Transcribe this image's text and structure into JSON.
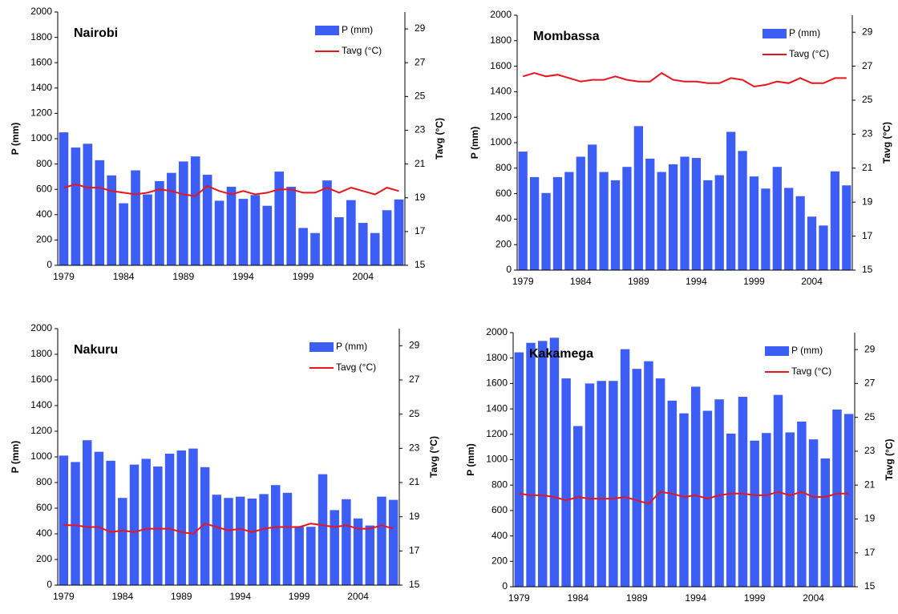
{
  "chart_data": [
    {
      "type": "combo",
      "title": "Nairobi",
      "ylabel": "P (mm)",
      "y2label": "Tavg (°C)",
      "categories": [
        "1979",
        null,
        null,
        null,
        null,
        "1984",
        null,
        null,
        null,
        null,
        "1989",
        null,
        null,
        null,
        null,
        "1994",
        null,
        null,
        null,
        null,
        "1999",
        null,
        null,
        null,
        null,
        "2004",
        null,
        null,
        null
      ],
      "ylim": [
        0,
        2000
      ],
      "yticks": [
        0,
        200,
        400,
        600,
        800,
        1000,
        1200,
        1400,
        1600,
        1800,
        2000
      ],
      "y2lim": [
        15,
        30
      ],
      "y2ticks": [
        15,
        17,
        19,
        21,
        23,
        25,
        27,
        29
      ],
      "series": [
        {
          "name": "P (mm)",
          "type": "bar",
          "color": "#3d5ef5",
          "values": [
            1050,
            930,
            960,
            830,
            710,
            490,
            750,
            560,
            665,
            730,
            820,
            860,
            715,
            510,
            620,
            525,
            555,
            470,
            740,
            620,
            295,
            255,
            670,
            380,
            515,
            335,
            255,
            435,
            520
          ]
        },
        {
          "name": "Tavg (°C)",
          "type": "line",
          "axis": "y2",
          "color": "#e8161c",
          "values": [
            19.6,
            19.8,
            19.6,
            19.6,
            19.4,
            19.3,
            19.2,
            19.3,
            19.5,
            19.4,
            19.2,
            19.1,
            19.7,
            19.4,
            19.2,
            19.4,
            19.2,
            19.3,
            19.5,
            19.5,
            19.3,
            19.3,
            19.6,
            19.3,
            19.6,
            19.4,
            19.2,
            19.6,
            19.4
          ]
        }
      ]
    },
    {
      "type": "combo",
      "title": "Mombassa",
      "ylabel": "P (mm)",
      "y2label": "Tavg (°C)",
      "categories": [
        "1979",
        null,
        null,
        null,
        null,
        "1984",
        null,
        null,
        null,
        null,
        "1989",
        null,
        null,
        null,
        null,
        "1994",
        null,
        null,
        null,
        null,
        "1999",
        null,
        null,
        null,
        null,
        "2004",
        null,
        null,
        null
      ],
      "ylim": [
        0,
        2000
      ],
      "yticks": [
        0,
        200,
        400,
        600,
        800,
        1000,
        1200,
        1400,
        1600,
        1800,
        2000
      ],
      "y2lim": [
        15,
        30
      ],
      "y2ticks": [
        15,
        17,
        19,
        21,
        23,
        25,
        27,
        29
      ],
      "series": [
        {
          "name": "P (mm)",
          "type": "bar",
          "color": "#3d5ef5",
          "values": [
            930,
            730,
            605,
            730,
            770,
            890,
            985,
            770,
            705,
            810,
            1130,
            875,
            770,
            830,
            890,
            880,
            705,
            745,
            1085,
            935,
            735,
            640,
            810,
            645,
            580,
            420,
            350,
            775,
            665
          ]
        },
        {
          "name": "Tavg (°C)",
          "type": "line",
          "axis": "y2",
          "color": "#e8161c",
          "values": [
            26.4,
            26.6,
            26.4,
            26.5,
            26.3,
            26.1,
            26.2,
            26.2,
            26.4,
            26.2,
            26.1,
            26.1,
            26.6,
            26.2,
            26.1,
            26.1,
            26.0,
            26.0,
            26.3,
            26.2,
            25.8,
            25.9,
            26.1,
            26.0,
            26.3,
            26.0,
            26.0,
            26.3,
            26.3
          ]
        }
      ]
    },
    {
      "type": "combo",
      "title": "Nakuru",
      "ylabel": "P (mm)",
      "y2label": "Tavg (°C)",
      "categories": [
        "1979",
        null,
        null,
        null,
        null,
        "1984",
        null,
        null,
        null,
        null,
        "1989",
        null,
        null,
        null,
        null,
        "1994",
        null,
        null,
        null,
        null,
        "1999",
        null,
        null,
        null,
        null,
        "2004",
        null,
        null,
        null
      ],
      "ylim": [
        0,
        2000
      ],
      "yticks": [
        0,
        200,
        400,
        600,
        800,
        1000,
        1200,
        1400,
        1600,
        1800,
        2000
      ],
      "y2lim": [
        15,
        30
      ],
      "y2ticks": [
        15,
        17,
        19,
        21,
        23,
        25,
        27,
        29
      ],
      "series": [
        {
          "name": "P (mm)",
          "type": "bar",
          "color": "#3d5ef5",
          "values": [
            1010,
            960,
            1130,
            1040,
            970,
            680,
            940,
            985,
            925,
            1025,
            1050,
            1065,
            920,
            705,
            680,
            690,
            675,
            710,
            780,
            720,
            460,
            455,
            865,
            585,
            670,
            520,
            465,
            690,
            665
          ]
        },
        {
          "name": "Tavg (°C)",
          "type": "line",
          "axis": "y2",
          "color": "#e8161c",
          "values": [
            18.5,
            18.5,
            18.4,
            18.4,
            18.1,
            18.2,
            18.1,
            18.3,
            18.3,
            18.3,
            18.1,
            18.0,
            18.6,
            18.4,
            18.2,
            18.3,
            18.1,
            18.3,
            18.4,
            18.4,
            18.4,
            18.6,
            18.5,
            18.4,
            18.5,
            18.3,
            18.3,
            18.5,
            18.3
          ]
        }
      ]
    },
    {
      "type": "combo",
      "title": "Kakamega",
      "ylabel": "P (mm)",
      "y2label": "Tavg (°C)",
      "categories": [
        "1979",
        null,
        null,
        null,
        null,
        "1984",
        null,
        null,
        null,
        null,
        "1989",
        null,
        null,
        null,
        null,
        "1994",
        null,
        null,
        null,
        null,
        "1999",
        null,
        null,
        null,
        null,
        "2004",
        null,
        null,
        null
      ],
      "ylim": [
        0,
        2000
      ],
      "yticks": [
        0,
        200,
        400,
        600,
        800,
        1000,
        1200,
        1400,
        1600,
        1800,
        2000
      ],
      "y2lim": [
        15,
        30
      ],
      "y2ticks": [
        15,
        17,
        19,
        21,
        23,
        25,
        27,
        29
      ],
      "series": [
        {
          "name": "P (mm)",
          "type": "bar",
          "color": "#3d5ef5",
          "values": [
            1845,
            1920,
            1935,
            1960,
            1640,
            1265,
            1600,
            1620,
            1620,
            1870,
            1715,
            1775,
            1640,
            1465,
            1365,
            1575,
            1385,
            1475,
            1205,
            1495,
            1150,
            1210,
            1510,
            1215,
            1300,
            1160,
            1010,
            1395,
            1360
          ]
        },
        {
          "name": "Tavg (°C)",
          "type": "line",
          "axis": "y2",
          "color": "#e8161c",
          "values": [
            20.5,
            20.4,
            20.4,
            20.3,
            20.1,
            20.3,
            20.2,
            20.2,
            20.2,
            20.3,
            20.1,
            19.9,
            20.6,
            20.5,
            20.3,
            20.4,
            20.2,
            20.4,
            20.5,
            20.5,
            20.4,
            20.4,
            20.6,
            20.4,
            20.6,
            20.3,
            20.3,
            20.5,
            20.5
          ]
        }
      ]
    }
  ]
}
